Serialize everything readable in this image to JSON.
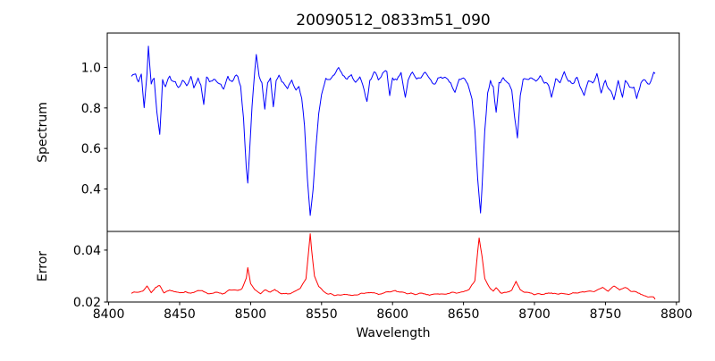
{
  "chart_data": {
    "type": "line",
    "title": "20090512_0833m51_090",
    "xlabel": "Wavelength",
    "x": {
      "min": 8399,
      "max": 8802,
      "ticks": [
        8400,
        8450,
        8500,
        8550,
        8600,
        8650,
        8700,
        8750,
        8800
      ],
      "tick_labels": [
        "8400",
        "8450",
        "8500",
        "8550",
        "8600",
        "8650",
        "8700",
        "8750",
        "8800"
      ]
    },
    "grid": false,
    "legend": "none",
    "subplots": [
      {
        "name": "spectrum",
        "ylabel": "Spectrum",
        "line_color": "#0000ff",
        "ylim": [
          0.19,
          1.17
        ],
        "yticks": [
          0.4,
          0.6,
          0.8,
          1.0
        ],
        "ytick_labels": [
          "0.4",
          "0.6",
          "0.8",
          "1.0"
        ],
        "x_start": 8416,
        "x_end": 8785,
        "x_step": 1,
        "noise_amp": 0.025,
        "noise_scales_with_value": true,
        "noise_seed": 42,
        "anchors": [
          [
            8416,
            0.95
          ],
          [
            8419,
            0.97
          ],
          [
            8421,
            0.93
          ],
          [
            8423,
            0.96
          ],
          [
            8425,
            0.8
          ],
          [
            8427,
            0.96
          ],
          [
            8428,
            1.11
          ],
          [
            8430,
            0.92
          ],
          [
            8432,
            0.95
          ],
          [
            8434,
            0.78
          ],
          [
            8436,
            0.67
          ],
          [
            8438,
            0.95
          ],
          [
            8440,
            0.92
          ],
          [
            8443,
            0.96
          ],
          [
            8446,
            0.93
          ],
          [
            8449,
            0.9
          ],
          [
            8452,
            0.95
          ],
          [
            8455,
            0.91
          ],
          [
            8458,
            0.96
          ],
          [
            8460,
            0.89
          ],
          [
            8463,
            0.96
          ],
          [
            8465,
            0.92
          ],
          [
            8467,
            0.81
          ],
          [
            8469,
            0.95
          ],
          [
            8472,
            0.92
          ],
          [
            8475,
            0.96
          ],
          [
            8478,
            0.92
          ],
          [
            8481,
            0.89
          ],
          [
            8484,
            0.95
          ],
          [
            8487,
            0.93
          ],
          [
            8490,
            0.96
          ],
          [
            8493,
            0.9
          ],
          [
            8495,
            0.75
          ],
          [
            8497,
            0.5
          ],
          [
            8498,
            0.43
          ],
          [
            8499,
            0.55
          ],
          [
            8501,
            0.8
          ],
          [
            8503,
            0.97
          ],
          [
            8504,
            1.05
          ],
          [
            8506,
            0.96
          ],
          [
            8508,
            0.93
          ],
          [
            8510,
            0.79
          ],
          [
            8512,
            0.92
          ],
          [
            8514,
            0.95
          ],
          [
            8516,
            0.8
          ],
          [
            8518,
            0.93
          ],
          [
            8520,
            0.96
          ],
          [
            8523,
            0.93
          ],
          [
            8526,
            0.9
          ],
          [
            8529,
            0.93
          ],
          [
            8532,
            0.89
          ],
          [
            8534,
            0.91
          ],
          [
            8536,
            0.85
          ],
          [
            8538,
            0.7
          ],
          [
            8540,
            0.45
          ],
          [
            8542,
            0.27
          ],
          [
            8544,
            0.4
          ],
          [
            8546,
            0.6
          ],
          [
            8548,
            0.78
          ],
          [
            8550,
            0.88
          ],
          [
            8553,
            0.93
          ],
          [
            8556,
            0.95
          ],
          [
            8559,
            0.97
          ],
          [
            8562,
            1.0
          ],
          [
            8565,
            0.96
          ],
          [
            8568,
            0.94
          ],
          [
            8571,
            0.97
          ],
          [
            8574,
            0.93
          ],
          [
            8577,
            0.96
          ],
          [
            8580,
            0.9
          ],
          [
            8582,
            0.84
          ],
          [
            8584,
            0.94
          ],
          [
            8587,
            0.97
          ],
          [
            8590,
            0.94
          ],
          [
            8593,
            0.96
          ],
          [
            8596,
            0.98
          ],
          [
            8598,
            0.86
          ],
          [
            8600,
            0.95
          ],
          [
            8603,
            0.93
          ],
          [
            8606,
            0.96
          ],
          [
            8609,
            0.87
          ],
          [
            8611,
            0.94
          ],
          [
            8614,
            0.96
          ],
          [
            8617,
            0.93
          ],
          [
            8620,
            0.95
          ],
          [
            8623,
            0.97
          ],
          [
            8626,
            0.94
          ],
          [
            8629,
            0.92
          ],
          [
            8632,
            0.96
          ],
          [
            8635,
            0.93
          ],
          [
            8638,
            0.95
          ],
          [
            8641,
            0.94
          ],
          [
            8644,
            0.88
          ],
          [
            8647,
            0.93
          ],
          [
            8650,
            0.95
          ],
          [
            8653,
            0.92
          ],
          [
            8656,
            0.85
          ],
          [
            8658,
            0.7
          ],
          [
            8660,
            0.45
          ],
          [
            8662,
            0.28
          ],
          [
            8663,
            0.4
          ],
          [
            8665,
            0.7
          ],
          [
            8667,
            0.88
          ],
          [
            8669,
            0.93
          ],
          [
            8671,
            0.9
          ],
          [
            8673,
            0.78
          ],
          [
            8675,
            0.93
          ],
          [
            8678,
            0.95
          ],
          [
            8681,
            0.92
          ],
          [
            8684,
            0.88
          ],
          [
            8686,
            0.75
          ],
          [
            8688,
            0.66
          ],
          [
            8690,
            0.88
          ],
          [
            8692,
            0.95
          ],
          [
            8695,
            0.93
          ],
          [
            8698,
            0.96
          ],
          [
            8701,
            0.93
          ],
          [
            8704,
            0.95
          ],
          [
            8707,
            0.92
          ],
          [
            8710,
            0.9
          ],
          [
            8712,
            0.85
          ],
          [
            8715,
            0.94
          ],
          [
            8718,
            0.92
          ],
          [
            8721,
            0.96
          ],
          [
            8724,
            0.93
          ],
          [
            8727,
            0.91
          ],
          [
            8730,
            0.95
          ],
          [
            8733,
            0.89
          ],
          [
            8735,
            0.85
          ],
          [
            8738,
            0.94
          ],
          [
            8741,
            0.92
          ],
          [
            8744,
            0.96
          ],
          [
            8747,
            0.87
          ],
          [
            8750,
            0.93
          ],
          [
            8753,
            0.89
          ],
          [
            8756,
            0.84
          ],
          [
            8759,
            0.93
          ],
          [
            8762,
            0.87
          ],
          [
            8764,
            0.95
          ],
          [
            8767,
            0.89
          ],
          [
            8770,
            0.92
          ],
          [
            8772,
            0.85
          ],
          [
            8775,
            0.91
          ],
          [
            8778,
            0.94
          ],
          [
            8781,
            0.92
          ],
          [
            8784,
            0.98
          ],
          [
            8785,
            0.97
          ]
        ]
      },
      {
        "name": "error",
        "ylabel": "Error",
        "line_color": "#ff0000",
        "ylim": [
          0.02,
          0.0472
        ],
        "yticks": [
          0.02,
          0.04
        ],
        "ytick_labels": [
          "0.02",
          "0.04"
        ],
        "x_start": 8416,
        "x_end": 8785,
        "x_step": 1,
        "noise_amp": 0.0005,
        "noise_scales_with_value": false,
        "noise_seed": 7,
        "anchors": [
          [
            8416,
            0.0235
          ],
          [
            8420,
            0.0238
          ],
          [
            8424,
            0.0242
          ],
          [
            8427,
            0.0262
          ],
          [
            8430,
            0.0238
          ],
          [
            8433,
            0.0255
          ],
          [
            8436,
            0.0264
          ],
          [
            8439,
            0.0238
          ],
          [
            8443,
            0.0245
          ],
          [
            8447,
            0.0237
          ],
          [
            8450,
            0.0233
          ],
          [
            8454,
            0.0242
          ],
          [
            8458,
            0.0235
          ],
          [
            8462,
            0.024
          ],
          [
            8466,
            0.0246
          ],
          [
            8470,
            0.0232
          ],
          [
            8475,
            0.0237
          ],
          [
            8480,
            0.023
          ],
          [
            8485,
            0.0243
          ],
          [
            8490,
            0.0243
          ],
          [
            8494,
            0.0252
          ],
          [
            8497,
            0.029
          ],
          [
            8498,
            0.033
          ],
          [
            8500,
            0.027
          ],
          [
            8503,
            0.0246
          ],
          [
            8507,
            0.0236
          ],
          [
            8511,
            0.0246
          ],
          [
            8514,
            0.0237
          ],
          [
            8517,
            0.0246
          ],
          [
            8521,
            0.0231
          ],
          [
            8526,
            0.0232
          ],
          [
            8531,
            0.0238
          ],
          [
            8535,
            0.025
          ],
          [
            8539,
            0.029
          ],
          [
            8541,
            0.04
          ],
          [
            8542,
            0.0462
          ],
          [
            8543,
            0.04
          ],
          [
            8545,
            0.03
          ],
          [
            8548,
            0.0262
          ],
          [
            8551,
            0.0246
          ],
          [
            8555,
            0.0232
          ],
          [
            8560,
            0.0227
          ],
          [
            8566,
            0.0227
          ],
          [
            8572,
            0.0226
          ],
          [
            8578,
            0.0231
          ],
          [
            8584,
            0.0237
          ],
          [
            8590,
            0.023
          ],
          [
            8596,
            0.0236
          ],
          [
            8602,
            0.0242
          ],
          [
            8608,
            0.0236
          ],
          [
            8614,
            0.0231
          ],
          [
            8620,
            0.0231
          ],
          [
            8626,
            0.0227
          ],
          [
            8632,
            0.023
          ],
          [
            8638,
            0.0231
          ],
          [
            8644,
            0.0237
          ],
          [
            8650,
            0.0237
          ],
          [
            8654,
            0.0248
          ],
          [
            8658,
            0.028
          ],
          [
            8661,
            0.0446
          ],
          [
            8663,
            0.038
          ],
          [
            8665,
            0.0292
          ],
          [
            8668,
            0.0258
          ],
          [
            8671,
            0.0241
          ],
          [
            8673,
            0.0256
          ],
          [
            8676,
            0.0237
          ],
          [
            8680,
            0.0236
          ],
          [
            8684,
            0.0247
          ],
          [
            8687,
            0.028
          ],
          [
            8690,
            0.0246
          ],
          [
            8694,
            0.0237
          ],
          [
            8700,
            0.0231
          ],
          [
            8706,
            0.0231
          ],
          [
            8712,
            0.0236
          ],
          [
            8718,
            0.0231
          ],
          [
            8724,
            0.0231
          ],
          [
            8730,
            0.0236
          ],
          [
            8736,
            0.0242
          ],
          [
            8742,
            0.0237
          ],
          [
            8748,
            0.0257
          ],
          [
            8752,
            0.0242
          ],
          [
            8756,
            0.0262
          ],
          [
            8760,
            0.0247
          ],
          [
            8764,
            0.0257
          ],
          [
            8768,
            0.0242
          ],
          [
            8772,
            0.0237
          ],
          [
            8776,
            0.0227
          ],
          [
            8780,
            0.0221
          ],
          [
            8784,
            0.0216
          ],
          [
            8785,
            0.021
          ]
        ]
      }
    ]
  }
}
